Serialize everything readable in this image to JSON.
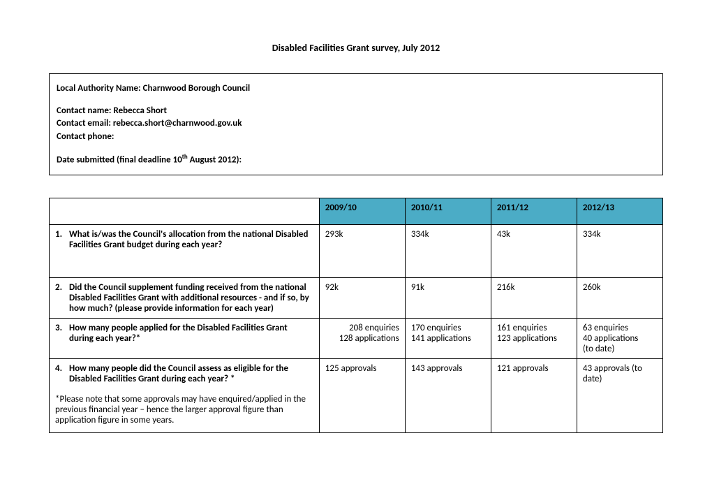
{
  "title": "Disabled Facilities Grant survey, July 2012",
  "info": {
    "authority": "Local Authority Name: Charnwood Borough Council",
    "contact_name": "Contact name: Rebecca Short",
    "contact_email": "Contact email:  rebecca.short@charnwood.gov.uk",
    "contact_phone": "Contact phone:",
    "date_submitted_prefix": "Date submitted (final deadline 10",
    "date_submitted_sup": "th",
    "date_submitted_suffix": " August 2012):"
  },
  "table": {
    "header_bg": "#4bacc6",
    "years": [
      "2009/10",
      "2010/11",
      "2011/12",
      "2012/13"
    ],
    "rows": [
      {
        "num": "1.",
        "q": "What is/was the Council's allocation from the national Disabled Facilities Grant budget during each year?",
        "cells": [
          "293k",
          "334k",
          "43k",
          "334k"
        ]
      },
      {
        "num": "2.",
        "q": "Did the Council supplement funding received from the national Disabled Facilities Grant with additional resources - and if so, by how much? (please provide information for each year)",
        "cells": [
          "92k",
          "91k",
          "216k",
          "260k"
        ]
      },
      {
        "num": "3.",
        "q": "How many people applied for the Disabled Facilities Grant during each year?*",
        "cells_lines": [
          [
            "208  enquiries",
            "128 applications"
          ],
          [
            "170 enquiries",
            "141 applications"
          ],
          [
            "161 enquiries",
            "123 applications"
          ],
          [
            "63 enquiries",
            "40 applications",
            "(to date)"
          ]
        ],
        "first_cell_right": true
      },
      {
        "num": "4.",
        "q": "How many people did the Council assess as eligible for the Disabled Facilities Grant during each year? *",
        "note": "*Please note that some approvals may have enquired/applied in the previous financial year – hence the larger approval figure than application figure in some years.",
        "cells": [
          "125 approvals",
          "143 approvals",
          "121 approvals",
          "43 approvals (to date)"
        ]
      }
    ]
  }
}
